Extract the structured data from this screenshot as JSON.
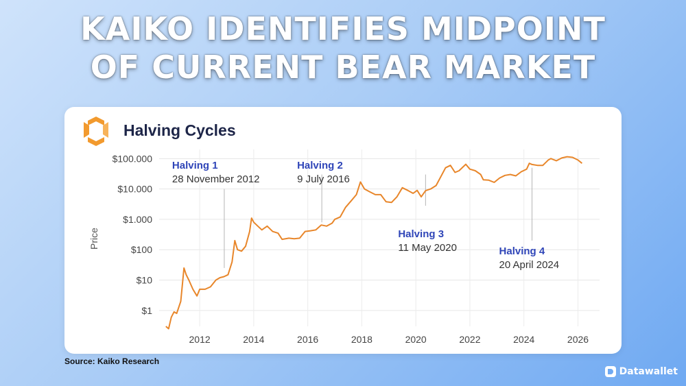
{
  "headline": {
    "line1": "KAIKO IDENTIFIES MIDPOINT",
    "line2": "OF CURRENT BEAR MARKET"
  },
  "source": "Source: Kaiko Research",
  "brand": {
    "name": "Datawallet"
  },
  "colors": {
    "line": "#e8862a",
    "halving_title": "#2f45b8",
    "logo_orange": "#f29a2e"
  },
  "chart_data": {
    "type": "line",
    "title": "Halving Cycles",
    "ylabel": "Price",
    "xlabel": "",
    "y_scale": "log",
    "ylim": [
      0.3,
      200000
    ],
    "xlim": [
      2010.5,
      2026.8
    ],
    "grid": true,
    "x_ticks": [
      2012,
      2014,
      2016,
      2018,
      2020,
      2022,
      2024,
      2026
    ],
    "x_tick_labels": [
      "2012",
      "2014",
      "2016",
      "2018",
      "2020",
      "2022",
      "2024",
      "2026"
    ],
    "y_ticks": [
      1,
      10,
      100,
      1000,
      10000,
      100000
    ],
    "y_tick_labels": [
      "$1",
      "$10",
      "$100",
      "$1.000",
      "$10.000",
      "$100.000"
    ],
    "series": [
      {
        "points": [
          [
            2010.75,
            0.3
          ],
          [
            2010.85,
            0.25
          ],
          [
            2010.95,
            0.6
          ],
          [
            2011.05,
            0.9
          ],
          [
            2011.15,
            0.8
          ],
          [
            2011.3,
            2
          ],
          [
            2011.42,
            25
          ],
          [
            2011.5,
            15
          ],
          [
            2011.6,
            10
          ],
          [
            2011.75,
            5
          ],
          [
            2011.9,
            3
          ],
          [
            2012.0,
            5
          ],
          [
            2012.2,
            5
          ],
          [
            2012.4,
            6
          ],
          [
            2012.6,
            10
          ],
          [
            2012.75,
            12
          ],
          [
            2012.9,
            13
          ],
          [
            2013.05,
            15
          ],
          [
            2013.2,
            40
          ],
          [
            2013.3,
            200
          ],
          [
            2013.4,
            100
          ],
          [
            2013.55,
            90
          ],
          [
            2013.7,
            130
          ],
          [
            2013.85,
            400
          ],
          [
            2013.92,
            1100
          ],
          [
            2014.0,
            800
          ],
          [
            2014.15,
            600
          ],
          [
            2014.3,
            450
          ],
          [
            2014.5,
            600
          ],
          [
            2014.7,
            400
          ],
          [
            2014.9,
            350
          ],
          [
            2015.05,
            220
          ],
          [
            2015.3,
            240
          ],
          [
            2015.5,
            230
          ],
          [
            2015.7,
            240
          ],
          [
            2015.9,
            400
          ],
          [
            2016.1,
            420
          ],
          [
            2016.3,
            450
          ],
          [
            2016.5,
            650
          ],
          [
            2016.7,
            600
          ],
          [
            2016.9,
            750
          ],
          [
            2017.0,
            1000
          ],
          [
            2017.2,
            1200
          ],
          [
            2017.4,
            2500
          ],
          [
            2017.6,
            4000
          ],
          [
            2017.8,
            6500
          ],
          [
            2017.95,
            17000
          ],
          [
            2018.1,
            10000
          ],
          [
            2018.3,
            8000
          ],
          [
            2018.5,
            6500
          ],
          [
            2018.7,
            6500
          ],
          [
            2018.9,
            3800
          ],
          [
            2019.1,
            3600
          ],
          [
            2019.3,
            5500
          ],
          [
            2019.5,
            11000
          ],
          [
            2019.7,
            9000
          ],
          [
            2019.9,
            7200
          ],
          [
            2020.05,
            9000
          ],
          [
            2020.2,
            5500
          ],
          [
            2020.36,
            8800
          ],
          [
            2020.55,
            10000
          ],
          [
            2020.75,
            13000
          ],
          [
            2020.95,
            28000
          ],
          [
            2021.1,
            50000
          ],
          [
            2021.28,
            60000
          ],
          [
            2021.45,
            35000
          ],
          [
            2021.6,
            40000
          ],
          [
            2021.85,
            65000
          ],
          [
            2022.0,
            45000
          ],
          [
            2022.2,
            40000
          ],
          [
            2022.4,
            30000
          ],
          [
            2022.5,
            20000
          ],
          [
            2022.7,
            19500
          ],
          [
            2022.9,
            16500
          ],
          [
            2023.1,
            23000
          ],
          [
            2023.3,
            28000
          ],
          [
            2023.5,
            30000
          ],
          [
            2023.7,
            27000
          ],
          [
            2023.9,
            37000
          ],
          [
            2024.1,
            45000
          ],
          [
            2024.2,
            70000
          ],
          [
            2024.3,
            64000
          ],
          [
            2024.5,
            60000
          ],
          [
            2024.7,
            60000
          ],
          [
            2024.9,
            90000
          ],
          [
            2025.0,
            100000
          ],
          [
            2025.2,
            85000
          ],
          [
            2025.4,
            105000
          ],
          [
            2025.6,
            115000
          ],
          [
            2025.8,
            110000
          ],
          [
            2026.0,
            90000
          ],
          [
            2026.15,
            70000
          ]
        ]
      }
    ],
    "annotations": [
      {
        "title": "Halving 1",
        "date": "28 November 2012",
        "x": 2012.91,
        "marker_top": 10000,
        "marker_bottom": 25
      },
      {
        "title": "Halving 2",
        "date": "9 July 2016",
        "x": 2016.52,
        "marker_top": 30000,
        "marker_bottom": 800
      },
      {
        "title": "Halving 3",
        "date": "11 May 2020",
        "x": 2020.36,
        "marker_top": 30000,
        "marker_bottom": 2800
      },
      {
        "title": "Halving 4",
        "date": "20 April 2024",
        "x": 2024.3,
        "marker_top": 50000,
        "marker_bottom": 200
      }
    ]
  }
}
